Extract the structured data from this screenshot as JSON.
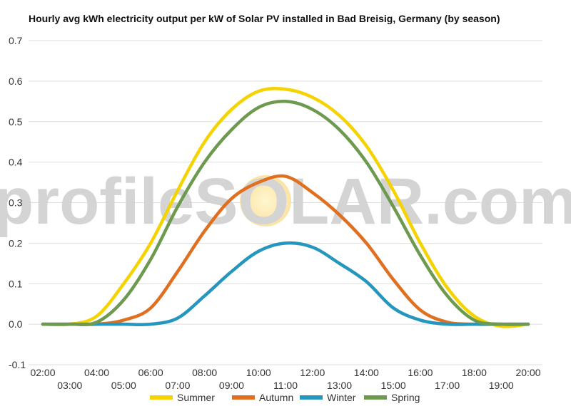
{
  "chart_data": {
    "type": "line",
    "title": "Hourly avg kWh electricity output per kW of Solar PV installed in Bad Breisig, Germany (by season)",
    "xlabel": "",
    "ylabel": "",
    "ylim": [
      -0.1,
      0.7
    ],
    "yticks": [
      "-0.1",
      "0.0",
      "0.1",
      "0.2",
      "0.3",
      "0.4",
      "0.5",
      "0.6",
      "0.7"
    ],
    "x": [
      "02:00",
      "03:00",
      "04:00",
      "05:00",
      "06:00",
      "07:00",
      "08:00",
      "09:00",
      "10:00",
      "11:00",
      "12:00",
      "13:00",
      "14:00",
      "15:00",
      "16:00",
      "17:00",
      "18:00",
      "19:00",
      "20:00"
    ],
    "grid": true,
    "legend_position": "bottom",
    "series": [
      {
        "name": "Summer",
        "color": "#f5d300",
        "values": [
          0.0,
          0.0,
          0.02,
          0.1,
          0.2,
          0.33,
          0.45,
          0.53,
          0.575,
          0.58,
          0.56,
          0.515,
          0.44,
          0.33,
          0.2,
          0.09,
          0.02,
          -0.005,
          0.0
        ]
      },
      {
        "name": "Autumn",
        "color": "#e07020",
        "values": [
          0.0,
          0.0,
          0.0,
          0.01,
          0.04,
          0.13,
          0.23,
          0.31,
          0.35,
          0.365,
          0.325,
          0.27,
          0.2,
          0.11,
          0.035,
          0.005,
          0.0,
          0.0,
          0.0
        ]
      },
      {
        "name": "Winter",
        "color": "#2596be",
        "values": [
          0.0,
          0.0,
          0.0,
          0.0,
          0.0,
          0.015,
          0.07,
          0.13,
          0.18,
          0.2,
          0.19,
          0.15,
          0.105,
          0.04,
          0.01,
          0.0,
          0.0,
          0.0,
          0.0
        ]
      },
      {
        "name": "Spring",
        "color": "#6e9a4f",
        "values": [
          0.0,
          0.0,
          0.005,
          0.06,
          0.16,
          0.29,
          0.4,
          0.48,
          0.535,
          0.55,
          0.53,
          0.48,
          0.4,
          0.29,
          0.17,
          0.07,
          0.01,
          0.0,
          0.0
        ]
      }
    ]
  },
  "watermark": {
    "text": "profileSOLAR.com",
    "color": "#d4d4d4"
  }
}
